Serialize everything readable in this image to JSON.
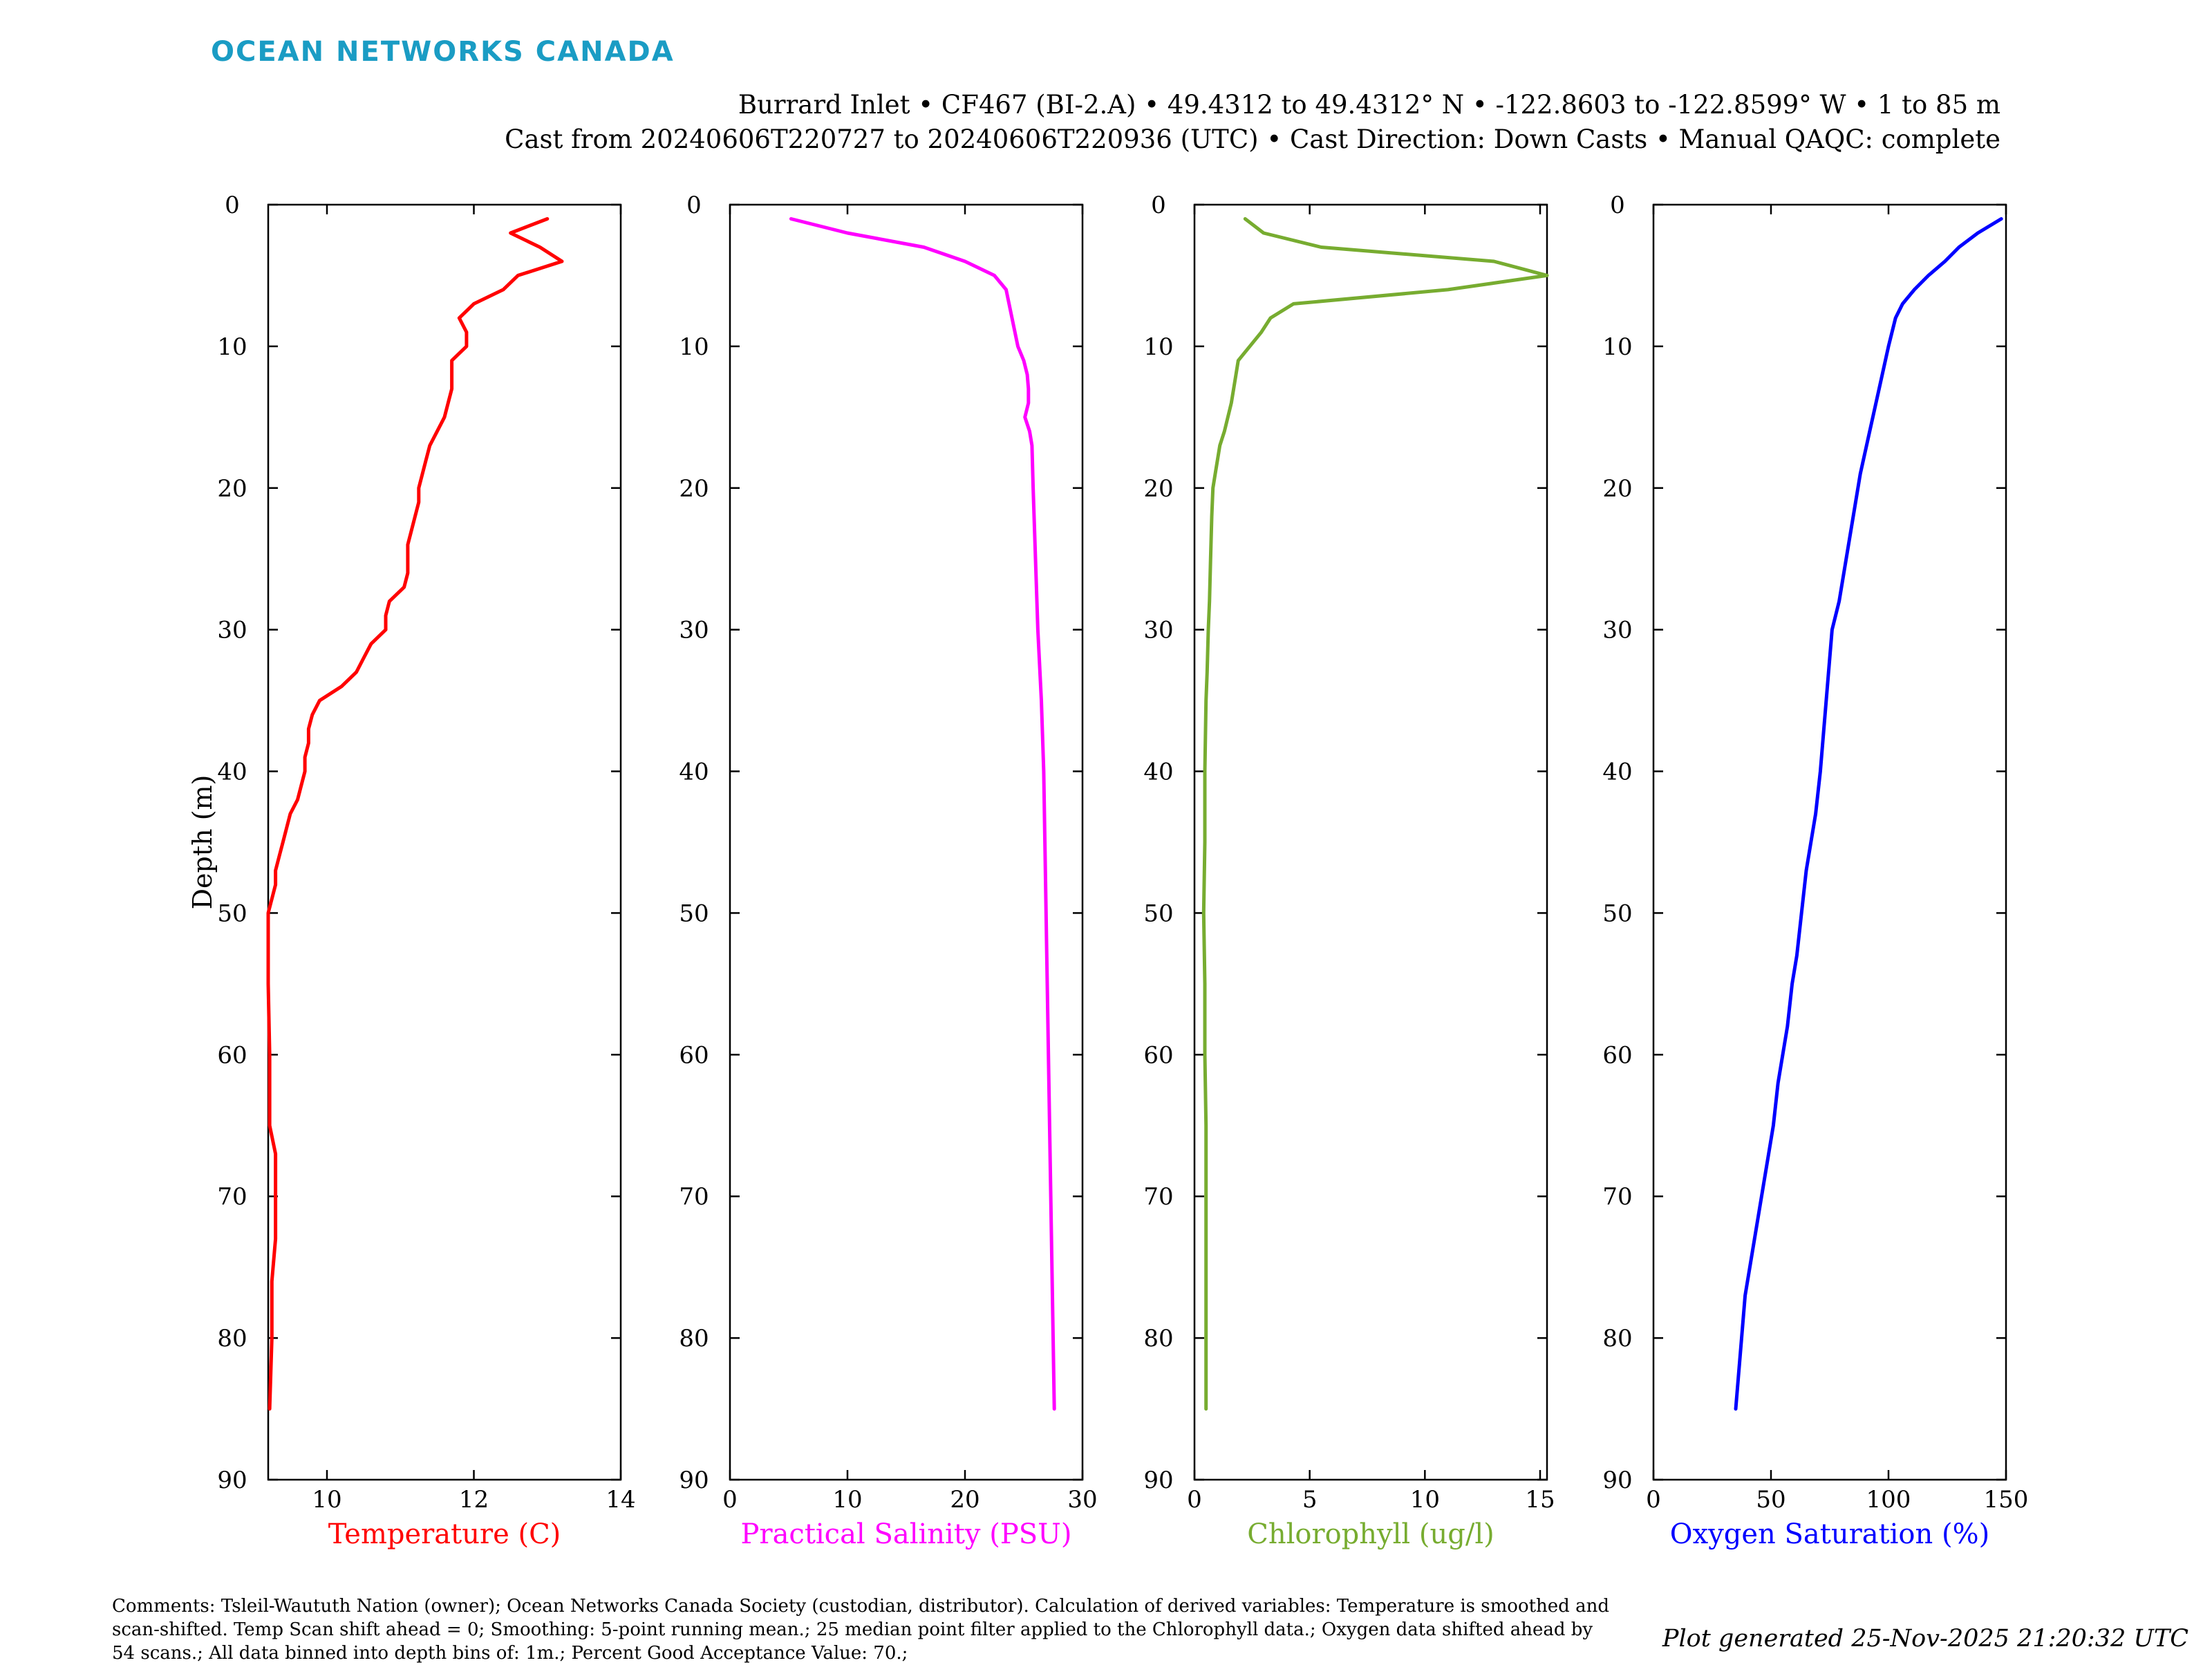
{
  "header": {
    "logo": "OCEAN NETWORKS CANADA",
    "title_line1": "Burrard Inlet • CF467 (BI-2.A) • 49.4312 to 49.4312° N • -122.8603 to -122.8599° W • 1 to 85 m",
    "title_line2": "Cast from 20240606T220727 to 20240606T220936 (UTC) • Cast Direction: Down Casts • Manual QAQC: complete"
  },
  "footer": {
    "comments": "Comments: Tsleil-Waututh Nation (owner); Ocean Networks Canada Society (custodian, distributor). Calculation of derived variables: Temperature is smoothed and scan-shifted. Temp Scan shift ahead = 0; Smoothing: 5-point running mean.; 25 median point filter applied to the Chlorophyll data.; Oxygen data shifted ahead by 54 scans.; All data binned into depth bins of: 1m.; Percent Good Acceptance Value: 70.;",
    "generated": "Plot generated 25-Nov-2025 21:20:32 UTC"
  },
  "chart_data": [
    {
      "type": "line",
      "xlabel": "Temperature (C)",
      "ylabel": "Depth (m)",
      "xlim": [
        9.2,
        14
      ],
      "xticks": [
        10,
        12,
        14
      ],
      "ylim": [
        0,
        90
      ],
      "yticks": [
        0,
        10,
        20,
        30,
        40,
        50,
        60,
        70,
        80,
        90
      ],
      "y_reversed": true,
      "color": "#ff0000",
      "points": [
        [
          13.0,
          1
        ],
        [
          12.5,
          2
        ],
        [
          12.9,
          3
        ],
        [
          13.2,
          4
        ],
        [
          12.6,
          5
        ],
        [
          12.4,
          6
        ],
        [
          12.0,
          7
        ],
        [
          11.8,
          8
        ],
        [
          11.9,
          9
        ],
        [
          11.9,
          10
        ],
        [
          11.7,
          11
        ],
        [
          11.7,
          12
        ],
        [
          11.7,
          13
        ],
        [
          11.65,
          14
        ],
        [
          11.6,
          15
        ],
        [
          11.5,
          16
        ],
        [
          11.4,
          17
        ],
        [
          11.35,
          18
        ],
        [
          11.3,
          19
        ],
        [
          11.25,
          20
        ],
        [
          11.25,
          21
        ],
        [
          11.2,
          22
        ],
        [
          11.15,
          23
        ],
        [
          11.1,
          24
        ],
        [
          11.1,
          25
        ],
        [
          11.1,
          26
        ],
        [
          11.05,
          27
        ],
        [
          10.85,
          28
        ],
        [
          10.8,
          29
        ],
        [
          10.8,
          30
        ],
        [
          10.6,
          31
        ],
        [
          10.5,
          32
        ],
        [
          10.4,
          33
        ],
        [
          10.2,
          34
        ],
        [
          9.9,
          35
        ],
        [
          9.8,
          36
        ],
        [
          9.75,
          37
        ],
        [
          9.75,
          38
        ],
        [
          9.7,
          39
        ],
        [
          9.7,
          40
        ],
        [
          9.65,
          41
        ],
        [
          9.6,
          42
        ],
        [
          9.5,
          43
        ],
        [
          9.45,
          44
        ],
        [
          9.4,
          45
        ],
        [
          9.35,
          46
        ],
        [
          9.3,
          47
        ],
        [
          9.3,
          48
        ],
        [
          9.25,
          49
        ],
        [
          9.2,
          50
        ],
        [
          9.2,
          51
        ],
        [
          9.2,
          52
        ],
        [
          9.2,
          55
        ],
        [
          9.22,
          60
        ],
        [
          9.22,
          65
        ],
        [
          9.3,
          67
        ],
        [
          9.3,
          70
        ],
        [
          9.3,
          73
        ],
        [
          9.25,
          76
        ],
        [
          9.25,
          80
        ],
        [
          9.22,
          85
        ]
      ]
    },
    {
      "type": "line",
      "xlabel": "Practical Salinity (PSU)",
      "xlim": [
        0,
        30
      ],
      "xticks": [
        0,
        10,
        20,
        30
      ],
      "ylim": [
        0,
        90
      ],
      "yticks": [
        0,
        10,
        20,
        30,
        40,
        50,
        60,
        70,
        80,
        90
      ],
      "y_reversed": true,
      "color": "#ff00ff",
      "points": [
        [
          5.2,
          1
        ],
        [
          10,
          2
        ],
        [
          16.5,
          3
        ],
        [
          20,
          4
        ],
        [
          22.5,
          5
        ],
        [
          23.5,
          6
        ],
        [
          24,
          8
        ],
        [
          24.5,
          10
        ],
        [
          25,
          11
        ],
        [
          25.3,
          12
        ],
        [
          25.4,
          13
        ],
        [
          25.4,
          14
        ],
        [
          25.1,
          15
        ],
        [
          25.5,
          16
        ],
        [
          25.7,
          17
        ],
        [
          25.8,
          20
        ],
        [
          26,
          25
        ],
        [
          26.2,
          30
        ],
        [
          26.5,
          35
        ],
        [
          26.7,
          40
        ],
        [
          26.8,
          45
        ],
        [
          26.9,
          50
        ],
        [
          27,
          55
        ],
        [
          27.1,
          60
        ],
        [
          27.2,
          65
        ],
        [
          27.3,
          70
        ],
        [
          27.4,
          75
        ],
        [
          27.5,
          80
        ],
        [
          27.6,
          85
        ]
      ]
    },
    {
      "type": "line",
      "xlabel": "Chlorophyll (ug/l)",
      "xlim": [
        0,
        15.3
      ],
      "xticks": [
        0,
        5,
        10,
        15
      ],
      "ylim": [
        0,
        90
      ],
      "yticks": [
        0,
        10,
        20,
        30,
        40,
        50,
        60,
        70,
        80,
        90
      ],
      "y_reversed": true,
      "color": "#77ac30",
      "points": [
        [
          2.2,
          1
        ],
        [
          3.0,
          2
        ],
        [
          5.5,
          3
        ],
        [
          13,
          4
        ],
        [
          15.3,
          5
        ],
        [
          11,
          6
        ],
        [
          4.3,
          7
        ],
        [
          3.3,
          8
        ],
        [
          2.9,
          9
        ],
        [
          2.4,
          10
        ],
        [
          1.9,
          11
        ],
        [
          1.8,
          12
        ],
        [
          1.6,
          14
        ],
        [
          1.3,
          16
        ],
        [
          1.1,
          17
        ],
        [
          0.9,
          19
        ],
        [
          0.8,
          20
        ],
        [
          0.75,
          22
        ],
        [
          0.7,
          25
        ],
        [
          0.65,
          28
        ],
        [
          0.6,
          30
        ],
        [
          0.55,
          33
        ],
        [
          0.5,
          35
        ],
        [
          0.45,
          40
        ],
        [
          0.45,
          45
        ],
        [
          0.4,
          50
        ],
        [
          0.45,
          55
        ],
        [
          0.45,
          60
        ],
        [
          0.5,
          65
        ],
        [
          0.5,
          70
        ],
        [
          0.5,
          75
        ],
        [
          0.5,
          80
        ],
        [
          0.5,
          85
        ]
      ]
    },
    {
      "type": "line",
      "xlabel": "Oxygen Saturation (%)",
      "xlim": [
        0,
        150
      ],
      "xticks": [
        0,
        50,
        100,
        150
      ],
      "ylim": [
        0,
        90
      ],
      "yticks": [
        0,
        10,
        20,
        30,
        40,
        50,
        60,
        70,
        80,
        90
      ],
      "y_reversed": true,
      "color": "#0000ff",
      "points": [
        [
          148,
          1
        ],
        [
          138,
          2
        ],
        [
          130,
          3
        ],
        [
          124,
          4
        ],
        [
          117,
          5
        ],
        [
          111,
          6
        ],
        [
          106,
          7
        ],
        [
          103,
          8
        ],
        [
          100,
          10
        ],
        [
          96,
          13
        ],
        [
          92,
          16
        ],
        [
          88,
          19
        ],
        [
          85,
          22
        ],
        [
          82,
          25
        ],
        [
          79,
          28
        ],
        [
          76,
          30
        ],
        [
          75,
          32
        ],
        [
          74,
          34
        ],
        [
          73,
          36
        ],
        [
          72,
          38
        ],
        [
          71,
          40
        ],
        [
          69,
          43
        ],
        [
          67,
          45
        ],
        [
          65,
          47
        ],
        [
          63,
          50
        ],
        [
          61,
          53
        ],
        [
          59,
          55
        ],
        [
          57,
          58
        ],
        [
          55,
          60
        ],
        [
          53,
          62
        ],
        [
          51,
          65
        ],
        [
          49,
          67
        ],
        [
          47,
          69
        ],
        [
          45,
          71
        ],
        [
          43,
          73
        ],
        [
          41,
          75
        ],
        [
          39,
          77
        ],
        [
          38,
          79
        ],
        [
          37,
          81
        ],
        [
          36,
          83
        ],
        [
          35,
          85
        ]
      ]
    }
  ]
}
